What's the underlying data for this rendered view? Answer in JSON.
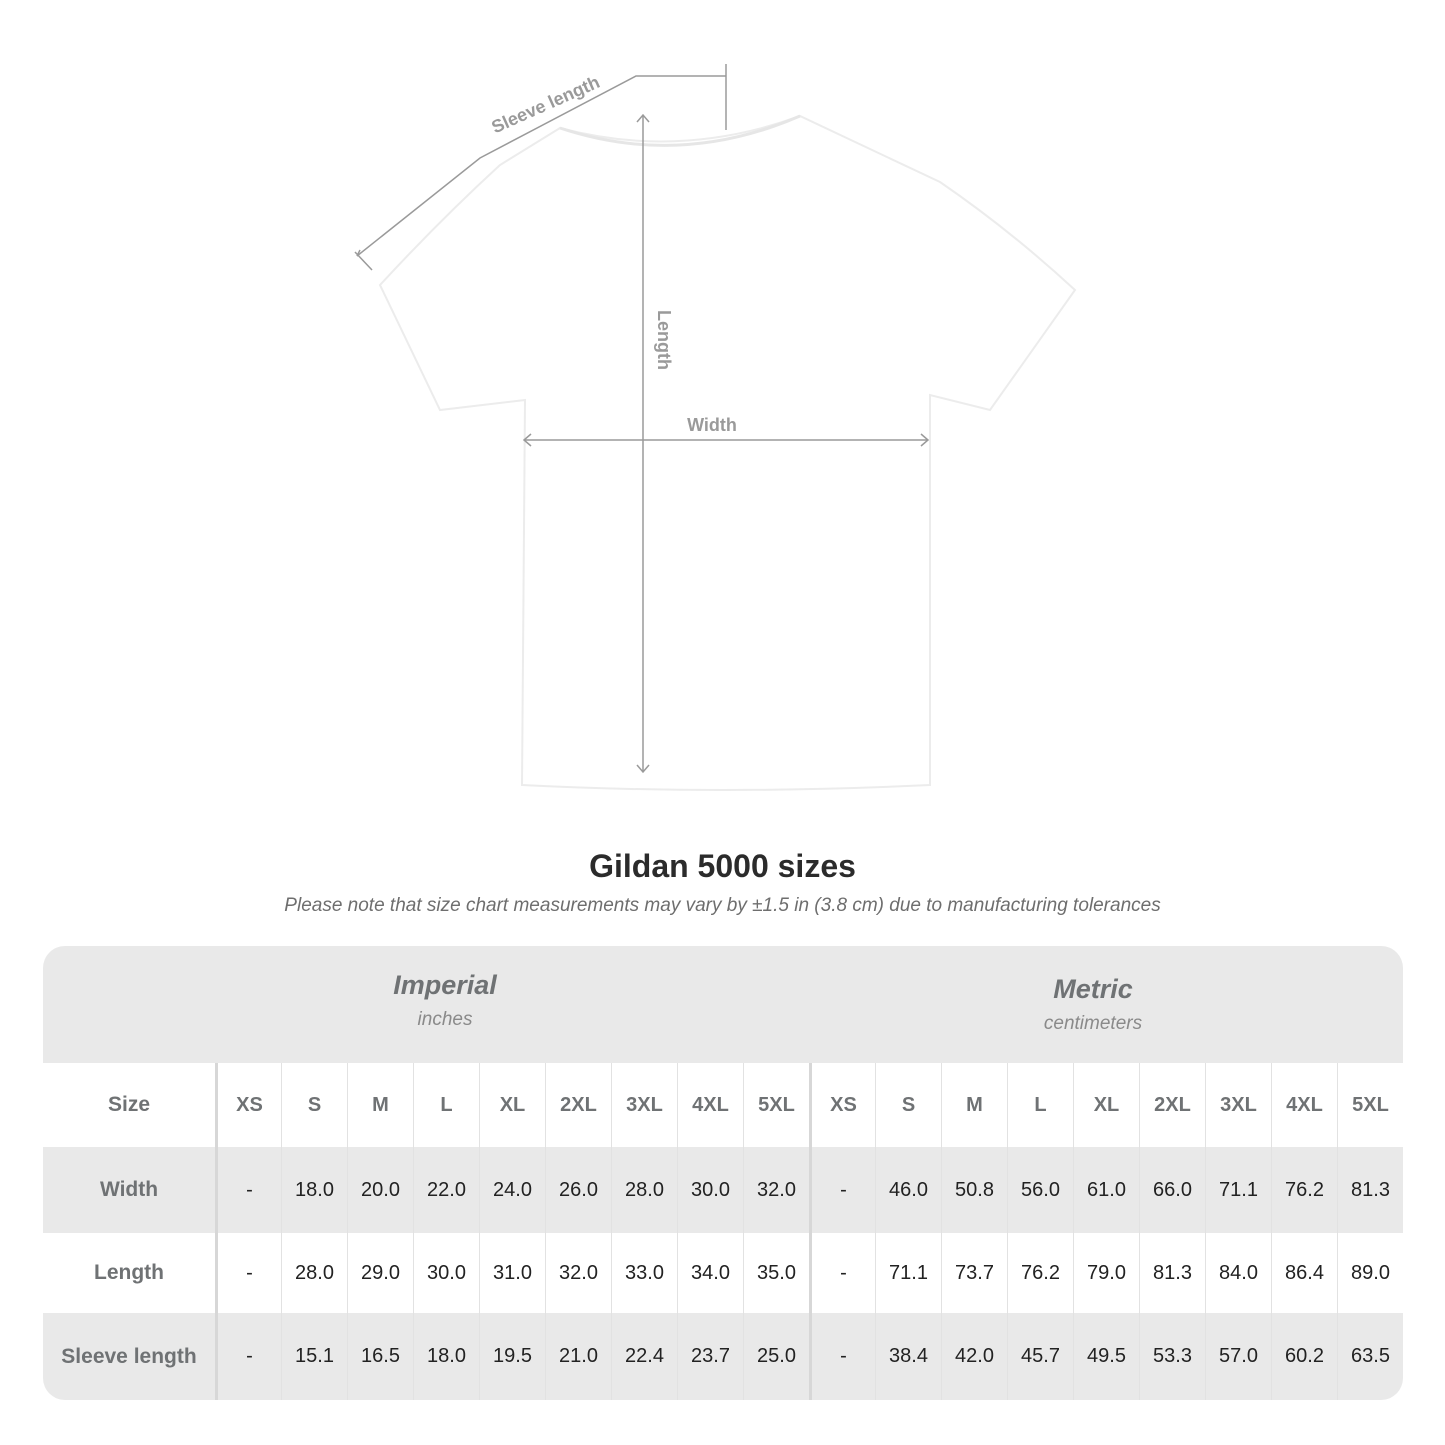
{
  "diagram": {
    "labels": {
      "sleeve": "Sleeve length",
      "length": "Length",
      "width": "Width"
    },
    "line_color": "#9a9a9a"
  },
  "title": "Gildan 5000 sizes",
  "subtitle": "Please note that size chart measurements may vary by ±1.5 in (3.8 cm) due to manufacturing tolerances",
  "table": {
    "imperial": {
      "name": "Imperial",
      "unit": "inches"
    },
    "metric": {
      "name": "Metric",
      "unit": "centimeters"
    },
    "size_label": "Size",
    "sizes": [
      "XS",
      "S",
      "M",
      "L",
      "XL",
      "2XL",
      "3XL",
      "4XL",
      "5XL"
    ],
    "rows": [
      {
        "label": "Width",
        "imperial": [
          "-",
          "18.0",
          "20.0",
          "22.0",
          "24.0",
          "26.0",
          "28.0",
          "30.0",
          "32.0"
        ],
        "metric": [
          "-",
          "46.0",
          "50.8",
          "56.0",
          "61.0",
          "66.0",
          "71.1",
          "76.2",
          "81.3"
        ]
      },
      {
        "label": "Length",
        "imperial": [
          "-",
          "28.0",
          "29.0",
          "30.0",
          "31.0",
          "32.0",
          "33.0",
          "34.0",
          "35.0"
        ],
        "metric": [
          "-",
          "71.1",
          "73.7",
          "76.2",
          "79.0",
          "81.3",
          "84.0",
          "86.4",
          "89.0"
        ]
      },
      {
        "label": "Sleeve length",
        "imperial": [
          "-",
          "15.1",
          "16.5",
          "18.0",
          "19.5",
          "21.0",
          "22.4",
          "23.7",
          "25.0"
        ],
        "metric": [
          "-",
          "38.4",
          "42.0",
          "45.7",
          "49.5",
          "53.3",
          "57.0",
          "60.2",
          "63.5"
        ]
      }
    ],
    "colors": {
      "band": "#e9e9e9",
      "text": "#6f7274"
    }
  }
}
